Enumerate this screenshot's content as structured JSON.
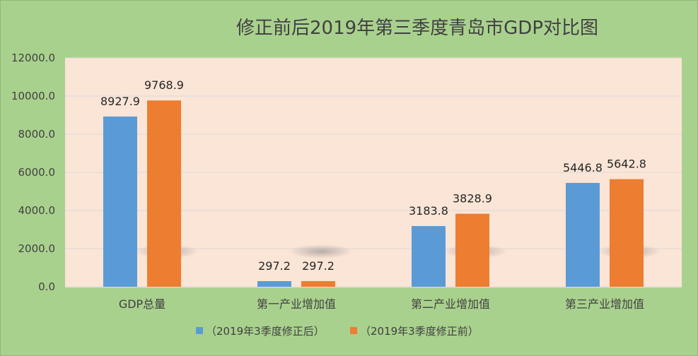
{
  "chart_data": {
    "type": "bar",
    "title": "修正前后2019年第三季度青岛市GDP对比图",
    "categories": [
      "GDP总量",
      "第一产业增加值",
      "第二产业增加值",
      "第三产业增加值"
    ],
    "series": [
      {
        "name": "（2019年3季度修正后）",
        "values": [
          8927.9,
          297.2,
          3183.8,
          5446.8
        ],
        "color": "#5b9bd5"
      },
      {
        "name": "（2019年3季度修正前）",
        "values": [
          9768.9,
          297.2,
          3828.9,
          5642.8
        ],
        "color": "#ed7d31"
      }
    ],
    "ylim": [
      0,
      12000
    ],
    "yticks": [
      "0.0",
      "2000.0",
      "4000.0",
      "6000.0",
      "8000.0",
      "10000.0",
      "12000.0"
    ],
    "data_labels": [
      [
        "8927.9",
        "297.2",
        "3183.8",
        "5446.8"
      ],
      [
        "9768.9",
        "297.2",
        "3828.9",
        "5642.8"
      ]
    ],
    "legend_position": "bottom",
    "grid": true
  },
  "colors": {
    "page_bg": "#a9d18e",
    "plot_bg": "#fbe5d6",
    "grid": "#d9d9d9"
  }
}
